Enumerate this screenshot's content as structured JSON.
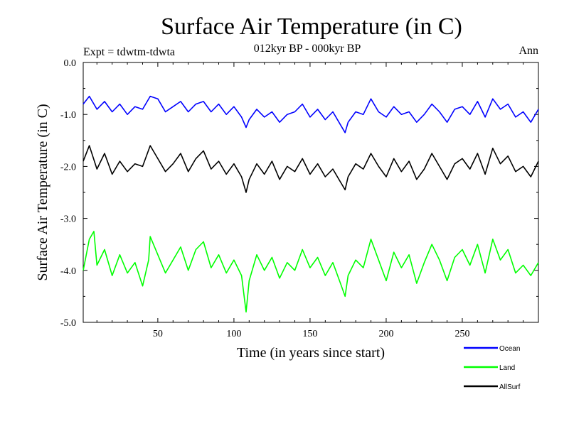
{
  "header": {
    "title": "Surface Air Temperature (in C)",
    "subtitle": "012kyr BP - 000kyr BP",
    "expt": "Expt = tdwtm-tdwta",
    "season": "Ann"
  },
  "colors": {
    "Ocean": "#0000ff",
    "Land": "#00ff00",
    "AllSurf": "#000000",
    "axis": "#000000"
  },
  "chart_data": {
    "type": "line",
    "title": "Surface Air Temperature (in C)",
    "xlabel": "Time (in years since start)",
    "ylabel": "Surface Air Temperature (in C)",
    "xlim": [
      1,
      300
    ],
    "ylim": [
      -5.0,
      0.0
    ],
    "xticks": [
      50,
      100,
      150,
      200,
      250
    ],
    "yticks": [
      -5.0,
      -4.0,
      -3.0,
      -2.0,
      -1.0,
      0.0
    ],
    "ytick_labels": [
      "-5.0",
      "-4.0",
      "-3.0",
      "-2.0",
      "-1.0",
      "0.0"
    ],
    "grid": false,
    "legend": "bottom-right",
    "series": [
      {
        "name": "Ocean",
        "x": [
          1,
          5,
          10,
          15,
          20,
          25,
          30,
          35,
          40,
          45,
          50,
          55,
          60,
          65,
          70,
          75,
          80,
          85,
          90,
          95,
          100,
          105,
          108,
          110,
          115,
          120,
          125,
          130,
          135,
          140,
          145,
          150,
          155,
          160,
          165,
          170,
          173,
          175,
          180,
          185,
          190,
          195,
          200,
          205,
          210,
          215,
          220,
          225,
          230,
          235,
          240,
          245,
          250,
          255,
          260,
          265,
          270,
          275,
          280,
          285,
          290,
          295,
          300
        ],
        "values": [
          -0.8,
          -0.65,
          -0.9,
          -0.75,
          -0.95,
          -0.8,
          -1.0,
          -0.85,
          -0.9,
          -0.65,
          -0.7,
          -0.95,
          -0.85,
          -0.75,
          -0.95,
          -0.8,
          -0.75,
          -0.95,
          -0.8,
          -1.0,
          -0.85,
          -1.05,
          -1.25,
          -1.1,
          -0.9,
          -1.05,
          -0.95,
          -1.15,
          -1.0,
          -0.95,
          -0.8,
          -1.05,
          -0.9,
          -1.1,
          -0.95,
          -1.2,
          -1.35,
          -1.15,
          -0.95,
          -1.0,
          -0.7,
          -0.95,
          -1.05,
          -0.85,
          -1.0,
          -0.95,
          -1.15,
          -1.0,
          -0.8,
          -0.95,
          -1.15,
          -0.9,
          -0.85,
          -1.0,
          -0.75,
          -1.05,
          -0.7,
          -0.9,
          -0.8,
          -1.05,
          -0.95,
          -1.15,
          -0.9
        ]
      },
      {
        "name": "AllSurf",
        "x": [
          1,
          5,
          10,
          15,
          20,
          25,
          30,
          35,
          40,
          45,
          50,
          55,
          60,
          65,
          70,
          75,
          80,
          85,
          90,
          95,
          100,
          105,
          108,
          110,
          115,
          120,
          125,
          130,
          135,
          140,
          145,
          150,
          155,
          160,
          165,
          170,
          173,
          175,
          180,
          185,
          190,
          195,
          200,
          205,
          210,
          215,
          220,
          225,
          230,
          235,
          240,
          245,
          250,
          255,
          260,
          265,
          270,
          275,
          280,
          285,
          290,
          295,
          300
        ],
        "values": [
          -1.9,
          -1.6,
          -2.05,
          -1.75,
          -2.15,
          -1.9,
          -2.1,
          -1.95,
          -2.0,
          -1.6,
          -1.85,
          -2.1,
          -1.95,
          -1.75,
          -2.1,
          -1.85,
          -1.7,
          -2.05,
          -1.9,
          -2.15,
          -1.95,
          -2.2,
          -2.5,
          -2.25,
          -1.95,
          -2.15,
          -1.9,
          -2.25,
          -2.0,
          -2.1,
          -1.85,
          -2.15,
          -1.95,
          -2.2,
          -2.05,
          -2.3,
          -2.45,
          -2.2,
          -1.95,
          -2.05,
          -1.75,
          -2.0,
          -2.2,
          -1.85,
          -2.1,
          -1.9,
          -2.25,
          -2.05,
          -1.75,
          -2.0,
          -2.25,
          -1.95,
          -1.85,
          -2.05,
          -1.75,
          -2.15,
          -1.65,
          -1.95,
          -1.8,
          -2.1,
          -2.0,
          -2.2,
          -1.9
        ]
      },
      {
        "name": "Land",
        "x": [
          1,
          5,
          8,
          10,
          15,
          20,
          25,
          30,
          35,
          40,
          44,
          45,
          50,
          55,
          60,
          65,
          70,
          75,
          80,
          85,
          90,
          95,
          100,
          105,
          108,
          110,
          115,
          120,
          125,
          130,
          135,
          140,
          145,
          150,
          155,
          160,
          165,
          170,
          173,
          175,
          180,
          185,
          190,
          195,
          200,
          205,
          210,
          215,
          220,
          225,
          230,
          235,
          240,
          245,
          250,
          255,
          260,
          265,
          270,
          275,
          280,
          285,
          290,
          295,
          300
        ],
        "values": [
          -4.0,
          -3.4,
          -3.25,
          -3.9,
          -3.6,
          -4.1,
          -3.7,
          -4.05,
          -3.85,
          -4.3,
          -3.8,
          -3.35,
          -3.7,
          -4.05,
          -3.8,
          -3.55,
          -4.0,
          -3.6,
          -3.45,
          -3.95,
          -3.7,
          -4.05,
          -3.8,
          -4.1,
          -4.8,
          -4.2,
          -3.7,
          -4.0,
          -3.75,
          -4.15,
          -3.85,
          -4.0,
          -3.6,
          -3.95,
          -3.75,
          -4.1,
          -3.85,
          -4.25,
          -4.5,
          -4.1,
          -3.8,
          -3.95,
          -3.4,
          -3.8,
          -4.2,
          -3.65,
          -3.95,
          -3.7,
          -4.25,
          -3.85,
          -3.5,
          -3.8,
          -4.2,
          -3.75,
          -3.6,
          -3.9,
          -3.5,
          -4.05,
          -3.4,
          -3.8,
          -3.6,
          -4.05,
          -3.9,
          -4.1,
          -3.85
        ]
      }
    ]
  }
}
